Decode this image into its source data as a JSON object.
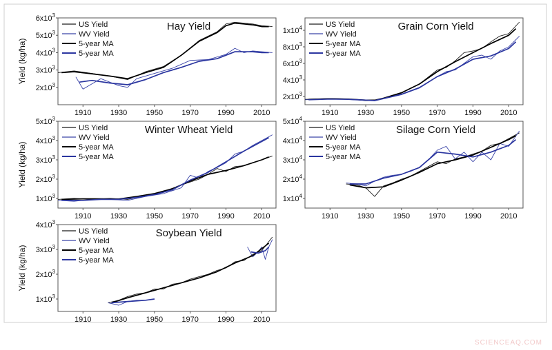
{
  "watermark": "SCIENCEAQ.COM",
  "colors": {
    "us": "#1a1a1a",
    "wv": "#3a44a8",
    "us_ma": "#000000",
    "wv_ma": "#2b36a0",
    "frame": "#555555"
  },
  "chart_data": [
    {
      "type": "line",
      "title": "Hay Yield",
      "ylabel": "Yield (kg/ha)",
      "xlim": [
        1896,
        2018
      ],
      "ylim": [
        1000,
        6000
      ],
      "xticks": [
        1910,
        1930,
        1950,
        1970,
        1990,
        2010
      ],
      "yticks": [
        {
          "v": 2000,
          "m": "2",
          "e": "3"
        },
        {
          "v": 3000,
          "m": "3",
          "e": "3"
        },
        {
          "v": 4000,
          "m": "4",
          "e": "3"
        },
        {
          "v": 5000,
          "m": "5",
          "e": "3"
        },
        {
          "v": 6000,
          "m": "6",
          "e": "3"
        }
      ],
      "legend": [
        "US Yield",
        "WV Yield",
        "5-year MA",
        "5-year MA"
      ],
      "series": [
        {
          "name": "US Yield",
          "kind": "us",
          "x": [
            1896,
            1905,
            1915,
            1925,
            1935,
            1945,
            1955,
            1965,
            1975,
            1985,
            1990,
            1995,
            2000,
            2005,
            2010,
            2016
          ],
          "y": [
            2850,
            2950,
            2800,
            2650,
            2450,
            2900,
            3200,
            3850,
            4700,
            5200,
            5650,
            5750,
            5700,
            5650,
            5550,
            5500
          ]
        },
        {
          "name": "WV Yield",
          "kind": "wv",
          "x": [
            1906,
            1910,
            1920,
            1930,
            1935,
            1940,
            1950,
            1960,
            1970,
            1980,
            1990,
            1995,
            2000,
            2005,
            2010,
            2016
          ],
          "y": [
            2600,
            1900,
            2500,
            2100,
            2000,
            2500,
            2800,
            3100,
            3550,
            3600,
            3900,
            4250,
            4000,
            4100,
            4050,
            4000
          ]
        },
        {
          "name": "5-year MA",
          "kind": "us_ma",
          "x": [
            1898,
            1905,
            1915,
            1925,
            1935,
            1945,
            1955,
            1965,
            1975,
            1985,
            1990,
            1995,
            2000,
            2005,
            2010,
            2014
          ],
          "y": [
            2850,
            2900,
            2780,
            2650,
            2500,
            2850,
            3150,
            3850,
            4650,
            5150,
            5550,
            5700,
            5650,
            5600,
            5500,
            5500
          ]
        },
        {
          "name": "5-year MA",
          "kind": "wv_ma",
          "x": [
            1908,
            1915,
            1925,
            1935,
            1945,
            1955,
            1965,
            1975,
            1985,
            1990,
            1995,
            2000,
            2005,
            2010,
            2014
          ],
          "y": [
            2300,
            2400,
            2250,
            2150,
            2450,
            2850,
            3150,
            3500,
            3650,
            3850,
            4050,
            4050,
            4050,
            4000,
            4000
          ]
        }
      ]
    },
    {
      "type": "line",
      "title": "Grain Corn Yield",
      "ylabel": "",
      "xlim": [
        1896,
        2018
      ],
      "ylim": [
        1000,
        11500
      ],
      "xticks": [
        1910,
        1930,
        1950,
        1970,
        1990,
        2010
      ],
      "yticks": [
        {
          "v": 2000,
          "m": "2",
          "e": "3"
        },
        {
          "v": 4000,
          "m": "4",
          "e": "3"
        },
        {
          "v": 6000,
          "m": "6",
          "e": "3"
        },
        {
          "v": 8000,
          "m": "8",
          "e": "3"
        },
        {
          "v": 10000,
          "m": "1",
          "e": "4"
        }
      ],
      "legend": [
        "US Yield",
        "WV Yield",
        "5-year MA",
        "5-year MA"
      ],
      "series": [
        {
          "name": "US Yield",
          "kind": "us",
          "x": [
            1896,
            1910,
            1920,
            1930,
            1935,
            1940,
            1950,
            1960,
            1970,
            1975,
            1980,
            1985,
            1990,
            1995,
            2000,
            2005,
            2010,
            2016
          ],
          "y": [
            1650,
            1750,
            1700,
            1500,
            1500,
            1800,
            2400,
            3500,
            5200,
            5500,
            6300,
            7300,
            7500,
            7800,
            8600,
            9300,
            9600,
            11000
          ]
        },
        {
          "name": "WV Yield",
          "kind": "wv",
          "x": [
            1896,
            1910,
            1920,
            1930,
            1935,
            1940,
            1950,
            1960,
            1970,
            1975,
            1980,
            1985,
            1990,
            1995,
            2000,
            2005,
            2010,
            2016
          ],
          "y": [
            1600,
            1700,
            1650,
            1550,
            1500,
            1800,
            2300,
            3100,
            4400,
            5000,
            5200,
            6000,
            6800,
            7000,
            6500,
            7500,
            8000,
            9300
          ]
        },
        {
          "name": "5-year MA",
          "kind": "us_ma",
          "x": [
            1898,
            1910,
            1920,
            1930,
            1935,
            1940,
            1950,
            1960,
            1970,
            1980,
            1990,
            2000,
            2010,
            2014
          ],
          "y": [
            1650,
            1720,
            1680,
            1550,
            1550,
            1800,
            2450,
            3500,
            5000,
            6200,
            7300,
            8400,
            9400,
            10200
          ]
        },
        {
          "name": "5-year MA",
          "kind": "wv_ma",
          "x": [
            1898,
            1910,
            1920,
            1930,
            1935,
            1940,
            1950,
            1960,
            1970,
            1980,
            1990,
            2000,
            2010,
            2014
          ],
          "y": [
            1600,
            1680,
            1650,
            1550,
            1500,
            1750,
            2250,
            3050,
            4400,
            5300,
            6500,
            6900,
            7800,
            8600
          ]
        }
      ]
    },
    {
      "type": "line",
      "title": "Winter Wheat Yield",
      "ylabel": "Yield (kg/ha)",
      "xlim": [
        1896,
        2018
      ],
      "ylim": [
        500,
        5000
      ],
      "xticks": [
        1910,
        1930,
        1950,
        1970,
        1990,
        2010
      ],
      "yticks": [
        {
          "v": 1000,
          "m": "1",
          "e": "3"
        },
        {
          "v": 2000,
          "m": "2",
          "e": "3"
        },
        {
          "v": 3000,
          "m": "3",
          "e": "3"
        },
        {
          "v": 4000,
          "m": "4",
          "e": "3"
        },
        {
          "v": 5000,
          "m": "5",
          "e": "3"
        }
      ],
      "legend": [
        "US Yield",
        "WV Yield",
        "5-year MA",
        "5-year MA"
      ],
      "series": [
        {
          "name": "US Yield",
          "kind": "us",
          "x": [
            1896,
            1905,
            1915,
            1925,
            1935,
            1945,
            1955,
            1965,
            1975,
            1980,
            1985,
            1990,
            1995,
            2000,
            2005,
            2010,
            2016
          ],
          "y": [
            950,
            1000,
            950,
            1000,
            950,
            1150,
            1350,
            1700,
            2000,
            2250,
            2550,
            2400,
            2650,
            2700,
            2850,
            3000,
            3200
          ]
        },
        {
          "name": "WV Yield",
          "kind": "wv",
          "x": [
            1896,
            1905,
            1915,
            1925,
            1935,
            1945,
            1955,
            1965,
            1970,
            1975,
            1980,
            1985,
            1990,
            1995,
            2000,
            2005,
            2010,
            2016
          ],
          "y": [
            900,
            850,
            950,
            950,
            900,
            1100,
            1250,
            1550,
            2200,
            2050,
            2400,
            2600,
            2850,
            3300,
            3450,
            3750,
            4000,
            4300
          ]
        },
        {
          "name": "5-year MA",
          "kind": "us_ma",
          "x": [
            1898,
            1910,
            1920,
            1930,
            1940,
            1950,
            1960,
            1970,
            1980,
            1990,
            2000,
            2010,
            2014
          ],
          "y": [
            950,
            980,
            980,
            970,
            1100,
            1250,
            1500,
            1900,
            2250,
            2450,
            2700,
            3000,
            3150
          ]
        },
        {
          "name": "5-year MA",
          "kind": "wv_ma",
          "x": [
            1898,
            1910,
            1920,
            1930,
            1940,
            1950,
            1960,
            1970,
            1980,
            1990,
            2000,
            2010,
            2014
          ],
          "y": [
            900,
            900,
            950,
            950,
            1050,
            1200,
            1450,
            1950,
            2350,
            2900,
            3450,
            3950,
            4150
          ]
        }
      ]
    },
    {
      "type": "line",
      "title": "Silage Corn Yield",
      "ylabel": "",
      "xlim": [
        1896,
        2018
      ],
      "ylim": [
        5000,
        50000
      ],
      "xticks": [
        1910,
        1930,
        1950,
        1970,
        1990,
        2010
      ],
      "yticks": [
        {
          "v": 10000,
          "m": "1",
          "e": "4"
        },
        {
          "v": 20000,
          "m": "2",
          "e": "4"
        },
        {
          "v": 30000,
          "m": "3",
          "e": "4"
        },
        {
          "v": 40000,
          "m": "4",
          "e": "4"
        },
        {
          "v": 50000,
          "m": "5",
          "e": "4"
        }
      ],
      "legend": [
        "US Yield",
        "WV Yield",
        "5-year MA",
        "5-year MA"
      ],
      "series": [
        {
          "name": "US Yield",
          "kind": "us",
          "x": [
            1919,
            1925,
            1930,
            1935,
            1940,
            1945,
            1950,
            1955,
            1960,
            1965,
            1970,
            1975,
            1980,
            1985,
            1990,
            1995,
            2000,
            2005,
            2010,
            2016
          ],
          "y": [
            17500,
            17000,
            15500,
            11000,
            16500,
            18000,
            20000,
            21500,
            24000,
            26500,
            29000,
            28000,
            30500,
            31500,
            33000,
            34500,
            37500,
            38500,
            41000,
            44000
          ]
        },
        {
          "name": "WV Yield",
          "kind": "wv",
          "x": [
            1919,
            1925,
            1930,
            1935,
            1940,
            1945,
            1950,
            1955,
            1960,
            1965,
            1970,
            1975,
            1980,
            1985,
            1990,
            1995,
            2000,
            2005,
            2010,
            2016
          ],
          "y": [
            18000,
            17500,
            16500,
            19000,
            21000,
            22000,
            22500,
            24000,
            26000,
            30000,
            35000,
            37000,
            30500,
            34000,
            29000,
            34000,
            30000,
            38500,
            37000,
            45000
          ]
        },
        {
          "name": "5-year MA",
          "kind": "us_ma",
          "x": [
            1921,
            1930,
            1940,
            1950,
            1960,
            1970,
            1980,
            1990,
            2000,
            2010,
            2014
          ],
          "y": [
            17000,
            15500,
            16000,
            19500,
            23500,
            28000,
            30000,
            32500,
            36500,
            40500,
            42500
          ]
        },
        {
          "name": "5-year MA",
          "kind": "wv_ma",
          "x": [
            1921,
            1930,
            1940,
            1950,
            1960,
            1970,
            1980,
            1990,
            2000,
            2010,
            2014
          ],
          "y": [
            17500,
            17500,
            20500,
            22500,
            26000,
            34000,
            33000,
            31500,
            34000,
            37500,
            40500
          ]
        }
      ]
    },
    {
      "type": "line",
      "title": "Soybean Yield",
      "ylabel": "Yield (kg/ha)",
      "xlim": [
        1896,
        2018
      ],
      "ylim": [
        500,
        4000
      ],
      "xticks": [
        1910,
        1930,
        1950,
        1970,
        1990,
        2010
      ],
      "yticks": [
        {
          "v": 1000,
          "m": "1",
          "e": "3"
        },
        {
          "v": 2000,
          "m": "2",
          "e": "3"
        },
        {
          "v": 3000,
          "m": "3",
          "e": "3"
        },
        {
          "v": 4000,
          "m": "4",
          "e": "3"
        }
      ],
      "legend": [
        "US Yield",
        "WV Yield",
        "5-year MA",
        "5-year MA"
      ],
      "series": [
        {
          "name": "US Yield",
          "kind": "us",
          "x": [
            1924,
            1930,
            1935,
            1940,
            1945,
            1950,
            1955,
            1960,
            1965,
            1970,
            1975,
            1980,
            1985,
            1990,
            1995,
            2000,
            2005,
            2010,
            2016
          ],
          "y": [
            850,
            950,
            1100,
            1200,
            1250,
            1400,
            1400,
            1600,
            1650,
            1800,
            1900,
            2000,
            2150,
            2250,
            2500,
            2550,
            2800,
            2950,
            3500
          ]
        },
        {
          "name": "WV Yield",
          "kind": "wv",
          "x": [
            1924,
            1930,
            1935,
            1940,
            1945,
            1950
          ],
          "y": [
            850,
            750,
            900,
            950,
            950,
            1000
          ]
        },
        {
          "name": "WV Yield",
          "kind": "wv",
          "x": [
            2002,
            2005,
            2008,
            2010,
            2012,
            2014,
            2016
          ],
          "y": [
            3100,
            2700,
            2900,
            3100,
            2600,
            3100,
            3400
          ]
        },
        {
          "name": "5-year MA",
          "kind": "us_ma",
          "x": [
            1926,
            1935,
            1945,
            1955,
            1965,
            1975,
            1985,
            1995,
            2005,
            2014
          ],
          "y": [
            850,
            1050,
            1250,
            1450,
            1650,
            1850,
            2100,
            2450,
            2750,
            3250
          ]
        },
        {
          "name": "5-year MA",
          "kind": "wv_ma",
          "x": [
            1926,
            1935,
            1945,
            1950
          ],
          "y": [
            850,
            900,
            950,
            1000
          ]
        },
        {
          "name": "5-year MA",
          "kind": "wv_ma",
          "x": [
            2004,
            2008,
            2012,
            2014
          ],
          "y": [
            2900,
            2850,
            2950,
            3100
          ]
        }
      ]
    }
  ]
}
